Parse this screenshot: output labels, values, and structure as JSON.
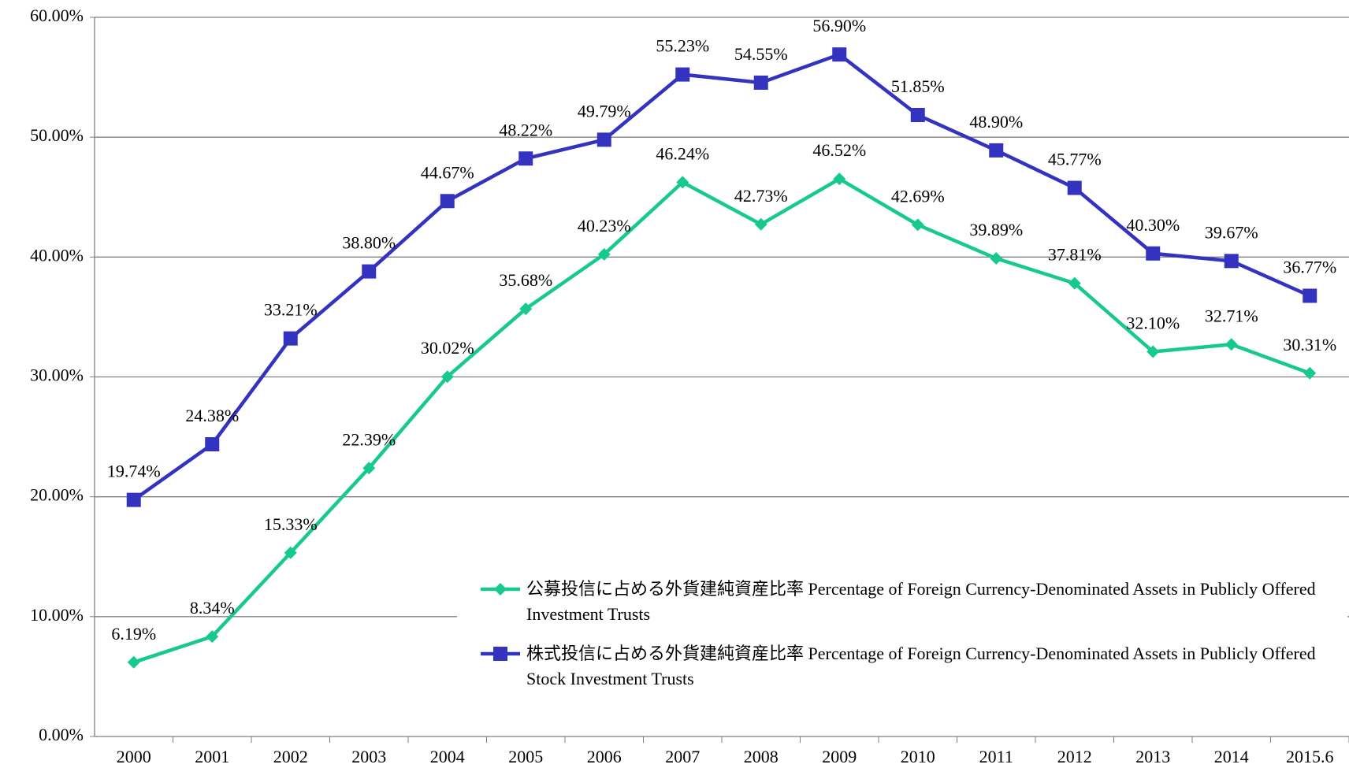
{
  "chart_data": {
    "type": "line",
    "categories": [
      "2000",
      "2001",
      "2002",
      "2003",
      "2004",
      "2005",
      "2006",
      "2007",
      "2008",
      "2009",
      "2010",
      "2011",
      "2012",
      "2013",
      "2014",
      "2015.6"
    ],
    "series": [
      {
        "name": "公募投信に占める外貨建純資産比率 Percentage of Foreign Currency-Denominated Assets in Publicly Offered Investment Trusts",
        "color": "#17c98f",
        "marker": "diamond",
        "values": [
          6.19,
          8.34,
          15.33,
          22.39,
          30.02,
          35.68,
          40.23,
          46.24,
          42.73,
          46.52,
          42.69,
          39.89,
          37.81,
          32.1,
          32.71,
          30.31
        ],
        "value_labels": [
          "6.19%",
          "8.34%",
          "15.33%",
          "22.39%",
          "30.02%",
          "35.68%",
          "40.23%",
          "46.24%",
          "42.73%",
          "46.52%",
          "42.69%",
          "39.89%",
          "37.81%",
          "32.10%",
          "32.71%",
          "30.31%"
        ]
      },
      {
        "name": "株式投信に占める外貨建純資産比率 Percentage of Foreign Currency-Denominated Assets in Publicly Offered Stock Investment Trusts",
        "color": "#3333c0",
        "marker": "square",
        "values": [
          19.74,
          24.38,
          33.21,
          38.8,
          44.67,
          48.22,
          49.79,
          55.23,
          54.55,
          56.9,
          51.85,
          48.9,
          45.77,
          40.3,
          39.67,
          36.77
        ],
        "value_labels": [
          "19.74%",
          "24.38%",
          "33.21%",
          "38.80%",
          "44.67%",
          "48.22%",
          "49.79%",
          "55.23%",
          "54.55%",
          "56.90%",
          "51.85%",
          "48.90%",
          "45.77%",
          "40.30%",
          "39.67%",
          "36.77%"
        ]
      }
    ],
    "ylim": [
      0,
      60
    ],
    "yticks": [
      {
        "value": 0,
        "label": "0.00%"
      },
      {
        "value": 10,
        "label": "10.00%"
      },
      {
        "value": 20,
        "label": "20.00%"
      },
      {
        "value": 30,
        "label": "30.00%"
      },
      {
        "value": 40,
        "label": "40.00%"
      },
      {
        "value": 50,
        "label": "50.00%"
      },
      {
        "value": 60,
        "label": "60.00%"
      }
    ],
    "grid": true
  }
}
